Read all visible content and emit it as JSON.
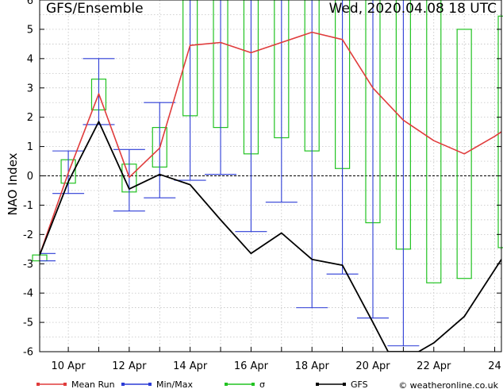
{
  "chart_data": {
    "type": "line",
    "title": "GFS/Ensemble",
    "timestamp": "Wed, 2020.04.08  18 UTC",
    "ylabel": "NAO Index",
    "xlabel": "",
    "ylim": [
      -6,
      6
    ],
    "yticks": [
      -6,
      -5,
      -4,
      -3,
      -2,
      -1,
      0,
      1,
      2,
      3,
      4,
      5,
      6
    ],
    "xlim": [
      9.06,
      24.22
    ],
    "xticks": [
      {
        "x": 10,
        "label": "10 Apr"
      },
      {
        "x": 12,
        "label": "12 Apr"
      },
      {
        "x": 14,
        "label": "14 Apr"
      },
      {
        "x": 16,
        "label": "16 Apr"
      },
      {
        "x": 18,
        "label": "18 Apr"
      },
      {
        "x": 20,
        "label": "20 Apr"
      },
      {
        "x": 22,
        "label": "22 Apr"
      },
      {
        "x": 24,
        "label": "24"
      }
    ],
    "grid": true,
    "zero_line": true,
    "colors": {
      "mean": "#e03c3c",
      "minmax": "#2c3cd6",
      "sigma": "#22c322",
      "gfs": "#000000",
      "grid": "#b8b8b8"
    },
    "series": [
      {
        "name": "Mean Run",
        "x": [
          9.06,
          10,
          11,
          12,
          13,
          14,
          15,
          16,
          17,
          18,
          19,
          20,
          21,
          22,
          23,
          24,
          24.22
        ],
        "values": [
          -2.7,
          0.1,
          2.8,
          -0.05,
          0.95,
          4.45,
          4.55,
          4.2,
          4.55,
          4.9,
          4.65,
          3.0,
          1.9,
          1.2,
          0.75,
          1.35,
          1.5
        ]
      },
      {
        "name": "GFS",
        "x": [
          9.06,
          10,
          11,
          12,
          13,
          14,
          15,
          16,
          17,
          18,
          19,
          20,
          20.5,
          21.5,
          22,
          23,
          24.22
        ],
        "values": [
          -2.7,
          -0.2,
          1.85,
          -0.45,
          0.05,
          -0.3,
          -1.5,
          -2.65,
          -1.95,
          -2.85,
          -3.05,
          -5.0,
          -6.0,
          -6.0,
          -5.7,
          -4.8,
          -2.85
        ]
      }
    ],
    "minmax": [
      {
        "x": 9.06,
        "min": -2.9,
        "max": -2.65
      },
      {
        "x": 10,
        "min": -0.6,
        "max": 0.85
      },
      {
        "x": 11,
        "min": 1.75,
        "max": 4.0
      },
      {
        "x": 12,
        "min": -1.2,
        "max": 0.9
      },
      {
        "x": 13,
        "min": -0.75,
        "max": 2.5
      },
      {
        "x": 14,
        "min": -0.15,
        "max": 6.0
      },
      {
        "x": 15,
        "min": 0.05,
        "max": 6.0
      },
      {
        "x": 16,
        "min": -1.9,
        "max": 6.0
      },
      {
        "x": 17,
        "min": -0.9,
        "max": 6.0
      },
      {
        "x": 18,
        "min": -4.5,
        "max": 6.0
      },
      {
        "x": 19,
        "min": -3.35,
        "max": 6.0
      },
      {
        "x": 20,
        "min": -4.85,
        "max": 6.0
      },
      {
        "x": 21,
        "min": -5.8,
        "max": 6.0
      }
    ],
    "sigma": [
      {
        "x": 9.06,
        "low": -2.9,
        "high": -2.7
      },
      {
        "x": 10,
        "low": -0.25,
        "high": 0.55
      },
      {
        "x": 11,
        "low": 2.25,
        "high": 3.3
      },
      {
        "x": 12,
        "low": -0.55,
        "high": 0.4
      },
      {
        "x": 13,
        "low": 0.3,
        "high": 1.65
      },
      {
        "x": 14,
        "low": 2.05,
        "high": 6.0
      },
      {
        "x": 15,
        "low": 1.65,
        "high": 6.0
      },
      {
        "x": 16,
        "low": 0.75,
        "high": 6.0
      },
      {
        "x": 17,
        "low": 1.3,
        "high": 6.0
      },
      {
        "x": 18,
        "low": 0.85,
        "high": 6.0
      },
      {
        "x": 19,
        "low": 0.25,
        "high": 6.0
      },
      {
        "x": 20,
        "low": -1.6,
        "high": 6.0
      },
      {
        "x": 21,
        "low": -2.5,
        "high": 6.0
      },
      {
        "x": 22,
        "low": -3.65,
        "high": 6.0
      },
      {
        "x": 23,
        "low": -3.5,
        "high": 5.0
      },
      {
        "x": 24.22,
        "low": -2.45,
        "high": 5.45
      }
    ],
    "legend": [
      {
        "label": "Mean Run",
        "color": "#e03c3c"
      },
      {
        "label": "Min/Max",
        "color": "#2c3cd6"
      },
      {
        "label": "σ",
        "color": "#22c322"
      },
      {
        "label": "GFS",
        "color": "#000000"
      }
    ],
    "credit": "© weatheronline.co.uk"
  }
}
